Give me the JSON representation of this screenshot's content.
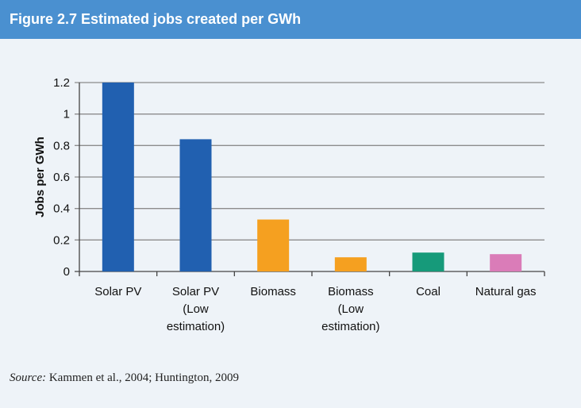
{
  "figure": {
    "title": "Figure 2.7 Estimated jobs created per GWh",
    "source_label": "Source:",
    "source_text": " Kammen et al., 2004; Huntington, 2009"
  },
  "colors": {
    "title_bar": "#4a90d0",
    "panel_bg": "#eef3f8",
    "solar": "#2160b0",
    "biomass": "#f5a020",
    "coal": "#169a7a",
    "natural_gas": "#da7cb8"
  },
  "chart_data": {
    "type": "bar",
    "title": "",
    "xlabel": "",
    "ylabel": "Jobs per GWh",
    "ylim": [
      0,
      1.2
    ],
    "yticks": [
      0,
      0.2,
      0.4,
      0.6,
      0.8,
      1,
      1.2
    ],
    "ytick_labels": [
      "0",
      "0.2",
      "0.4",
      "0.6",
      "0.8",
      "1",
      "1.2"
    ],
    "grid": true,
    "categories": [
      [
        "Solar PV"
      ],
      [
        "Solar PV",
        "(Low",
        "estimation)"
      ],
      [
        "Biomass"
      ],
      [
        "Biomass",
        "(Low",
        "estimation)"
      ],
      [
        "Coal"
      ],
      [
        "Natural gas"
      ]
    ],
    "values": [
      1.2,
      0.84,
      0.33,
      0.09,
      0.12,
      0.11
    ],
    "bar_colors": [
      "#2160b0",
      "#2160b0",
      "#f5a020",
      "#f5a020",
      "#169a7a",
      "#da7cb8"
    ]
  }
}
